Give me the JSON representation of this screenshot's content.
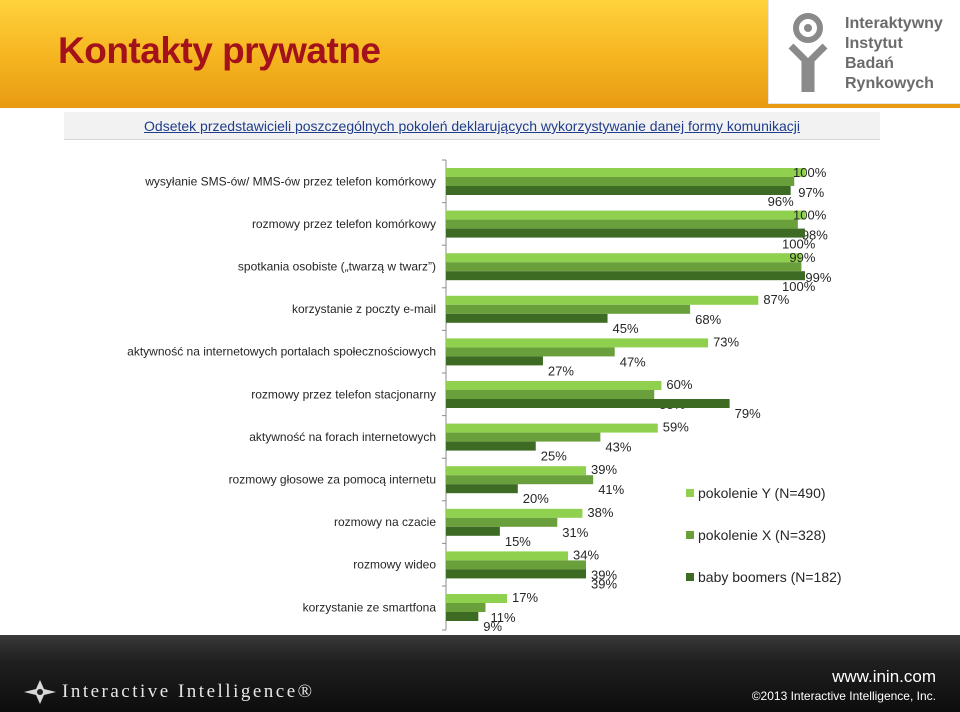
{
  "page": {
    "title": "Kontakty prywatne",
    "logo_lines": [
      "Interaktywny",
      "Instytut",
      "Badań",
      "Rynkowych"
    ],
    "footer_brand": "Interactive Intelligence®",
    "footer_url": "www.inin.com",
    "footer_copyright": "©2013 Interactive Intelligence, Inc."
  },
  "chart_data": {
    "type": "bar",
    "orientation": "horizontal",
    "title": "Odsetek przedstawicieli poszczególnych pokoleń deklarujących wykorzystywanie danej formy komunikacji",
    "categories": [
      "wysyłanie SMS-ów/ MMS-ów przez telefon komórkowy",
      "rozmowy przez telefon komórkowy",
      "spotkania osobiste („twarzą w twarz”)",
      "korzystanie z poczty e-mail",
      "aktywność na internetowych portalach społecznościowych",
      "rozmowy przez telefon stacjonarny",
      "aktywność na forach internetowych",
      "rozmowy głosowe za pomocą internetu",
      "rozmowy na czacie",
      "rozmowy wideo",
      "korzystanie ze smartfona"
    ],
    "series": [
      {
        "name": "pokolenie Y (N=490)",
        "color": "#8fd14f",
        "values": [
          100,
          100,
          99,
          87,
          73,
          60,
          59,
          39,
          38,
          34,
          17
        ]
      },
      {
        "name": "pokolenie X (N=328)",
        "color": "#6aa03c",
        "values": [
          97,
          98,
          99,
          68,
          47,
          58,
          43,
          41,
          31,
          39,
          11
        ]
      },
      {
        "name": "baby boomers (N=182)",
        "color": "#3e6b23",
        "values": [
          96,
          100,
          100,
          45,
          27,
          79,
          25,
          20,
          15,
          39,
          9
        ]
      }
    ],
    "xlim": [
      0,
      100
    ],
    "xticks": [
      "0%",
      "20%",
      "40%",
      "60%",
      "80%",
      "100%"
    ],
    "value_suffix": "%",
    "grid": false,
    "legend_position": "right"
  }
}
